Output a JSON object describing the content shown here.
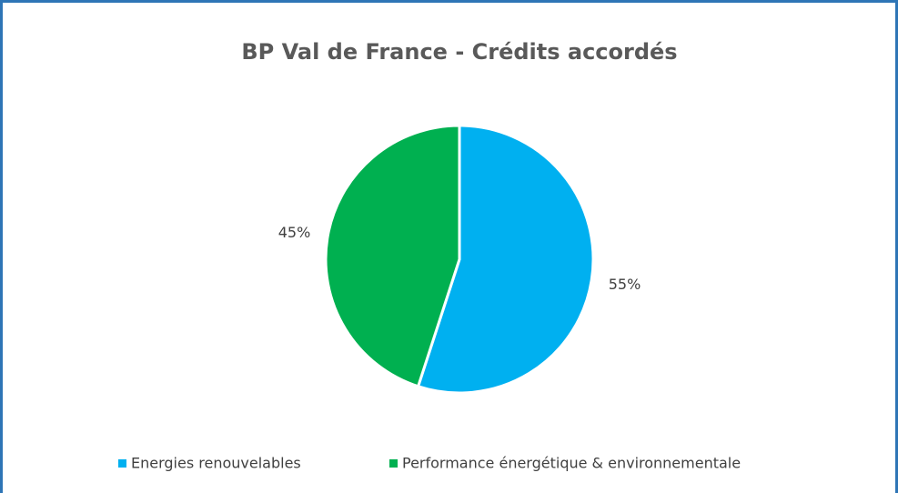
{
  "chart_data": {
    "type": "pie",
    "title": "BP Val de France - Crédits accordés",
    "categories": [
      "Energies renouvelables",
      "Performance énergétique & environnementale"
    ],
    "values": [
      55,
      45
    ],
    "value_labels": [
      "55%",
      "45%"
    ],
    "colors": [
      "#00b0f0",
      "#00b050"
    ],
    "legend": "bottom"
  }
}
